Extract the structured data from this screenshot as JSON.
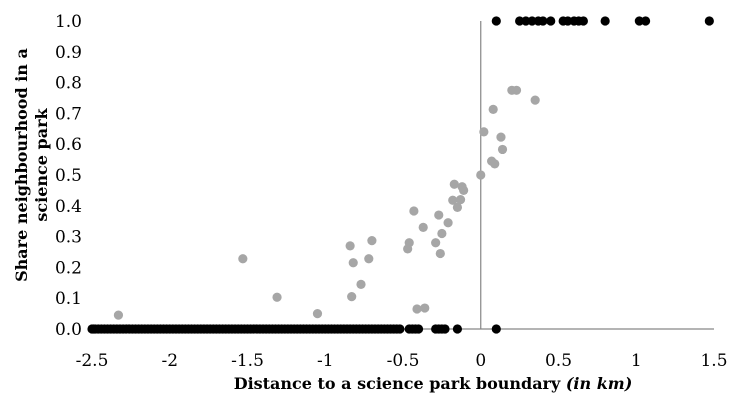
{
  "chart_data": {
    "type": "scatter",
    "title": "",
    "xlabel": "Distance to a science park boundary",
    "xlabel_unit": "(in km)",
    "ylabel_line1": "Share neighbourhood in a",
    "ylabel_line2": "science park",
    "xlim": [
      -2.5,
      1.5
    ],
    "ylim": [
      0.0,
      1.0
    ],
    "x_ticks": [
      "-2.5",
      "-2",
      "-1.5",
      "-1",
      "-0.5",
      "0",
      "0.5",
      "1",
      "1.5"
    ],
    "y_ticks": [
      "0.0",
      "0.1",
      "0.2",
      "0.3",
      "0.4",
      "0.5",
      "0.6",
      "0.7",
      "0.8",
      "0.9",
      "1.0"
    ],
    "grid": false,
    "legend": "none",
    "series": [
      {
        "color": "#a6a6a6",
        "points": [
          [
            -2.33,
            0.045
          ],
          [
            -1.53,
            0.228
          ],
          [
            -1.31,
            0.103
          ],
          [
            -1.05,
            0.05
          ],
          [
            -0.84,
            0.27
          ],
          [
            -0.83,
            0.105
          ],
          [
            -0.82,
            0.215
          ],
          [
            -0.77,
            0.145
          ],
          [
            -0.72,
            0.228
          ],
          [
            -0.7,
            0.287
          ],
          [
            -0.47,
            0.26
          ],
          [
            -0.46,
            0.28
          ],
          [
            -0.43,
            0.383
          ],
          [
            -0.41,
            0.065
          ],
          [
            -0.37,
            0.33
          ],
          [
            -0.36,
            0.068
          ],
          [
            -0.29,
            0.28
          ],
          [
            -0.27,
            0.37
          ],
          [
            -0.26,
            0.245
          ],
          [
            -0.25,
            0.31
          ],
          [
            -0.21,
            0.345
          ],
          [
            -0.18,
            0.418
          ],
          [
            -0.17,
            0.47
          ],
          [
            -0.15,
            0.395
          ],
          [
            -0.13,
            0.42
          ],
          [
            -0.12,
            0.462
          ],
          [
            -0.11,
            0.45
          ],
          [
            0.0,
            0.5
          ],
          [
            0.02,
            0.64
          ],
          [
            0.07,
            0.545
          ],
          [
            0.08,
            0.713
          ],
          [
            0.09,
            0.536
          ],
          [
            0.13,
            0.623
          ],
          [
            0.14,
            0.583
          ],
          [
            0.2,
            0.775
          ],
          [
            0.23,
            0.775
          ],
          [
            0.35,
            0.743
          ]
        ]
      },
      {
        "color": "#000000",
        "points": [
          [
            -2.5,
            0.0
          ],
          [
            -2.49,
            0.0
          ],
          [
            -2.48,
            0.0
          ],
          [
            -2.46,
            0.0
          ],
          [
            -2.44,
            0.0
          ],
          [
            -2.42,
            0.0
          ],
          [
            -2.4,
            0.0
          ],
          [
            -2.38,
            0.0
          ],
          [
            -2.36,
            0.0
          ],
          [
            -2.34,
            0.0
          ],
          [
            -2.32,
            0.0
          ],
          [
            -2.3,
            0.0
          ],
          [
            -2.28,
            0.0
          ],
          [
            -2.26,
            0.0
          ],
          [
            -2.24,
            0.0
          ],
          [
            -2.22,
            0.0
          ],
          [
            -2.2,
            0.0
          ],
          [
            -2.18,
            0.0
          ],
          [
            -2.16,
            0.0
          ],
          [
            -2.14,
            0.0
          ],
          [
            -2.12,
            0.0
          ],
          [
            -2.1,
            0.0
          ],
          [
            -2.08,
            0.0
          ],
          [
            -2.06,
            0.0
          ],
          [
            -2.04,
            0.0
          ],
          [
            -2.02,
            0.0
          ],
          [
            -2.0,
            0.0
          ],
          [
            -1.98,
            0.0
          ],
          [
            -1.96,
            0.0
          ],
          [
            -1.94,
            0.0
          ],
          [
            -1.92,
            0.0
          ],
          [
            -1.9,
            0.0
          ],
          [
            -1.88,
            0.0
          ],
          [
            -1.86,
            0.0
          ],
          [
            -1.84,
            0.0
          ],
          [
            -1.82,
            0.0
          ],
          [
            -1.8,
            0.0
          ],
          [
            -1.78,
            0.0
          ],
          [
            -1.76,
            0.0
          ],
          [
            -1.74,
            0.0
          ],
          [
            -1.72,
            0.0
          ],
          [
            -1.7,
            0.0
          ],
          [
            -1.68,
            0.0
          ],
          [
            -1.66,
            0.0
          ],
          [
            -1.64,
            0.0
          ],
          [
            -1.62,
            0.0
          ],
          [
            -1.6,
            0.0
          ],
          [
            -1.58,
            0.0
          ],
          [
            -1.56,
            0.0
          ],
          [
            -1.54,
            0.0
          ],
          [
            -1.52,
            0.0
          ],
          [
            -1.5,
            0.0
          ],
          [
            -1.48,
            0.0
          ],
          [
            -1.46,
            0.0
          ],
          [
            -1.44,
            0.0
          ],
          [
            -1.42,
            0.0
          ],
          [
            -1.4,
            0.0
          ],
          [
            -1.38,
            0.0
          ],
          [
            -1.36,
            0.0
          ],
          [
            -1.34,
            0.0
          ],
          [
            -1.32,
            0.0
          ],
          [
            -1.3,
            0.0
          ],
          [
            -1.28,
            0.0
          ],
          [
            -1.26,
            0.0
          ],
          [
            -1.24,
            0.0
          ],
          [
            -1.22,
            0.0
          ],
          [
            -1.2,
            0.0
          ],
          [
            -1.18,
            0.0
          ],
          [
            -1.16,
            0.0
          ],
          [
            -1.14,
            0.0
          ],
          [
            -1.12,
            0.0
          ],
          [
            -1.1,
            0.0
          ],
          [
            -1.08,
            0.0
          ],
          [
            -1.06,
            0.0
          ],
          [
            -1.04,
            0.0
          ],
          [
            -1.02,
            0.0
          ],
          [
            -1.0,
            0.0
          ],
          [
            -0.98,
            0.0
          ],
          [
            -0.96,
            0.0
          ],
          [
            -0.94,
            0.0
          ],
          [
            -0.92,
            0.0
          ],
          [
            -0.9,
            0.0
          ],
          [
            -0.88,
            0.0
          ],
          [
            -0.86,
            0.0
          ],
          [
            -0.84,
            0.0
          ],
          [
            -0.82,
            0.0
          ],
          [
            -0.8,
            0.0
          ],
          [
            -0.78,
            0.0
          ],
          [
            -0.76,
            0.0
          ],
          [
            -0.74,
            0.0
          ],
          [
            -0.72,
            0.0
          ],
          [
            -0.7,
            0.0
          ],
          [
            -0.68,
            0.0
          ],
          [
            -0.66,
            0.0
          ],
          [
            -0.64,
            0.0
          ],
          [
            -0.62,
            0.0
          ],
          [
            -0.6,
            0.0
          ],
          [
            -0.58,
            0.0
          ],
          [
            -0.56,
            0.0
          ],
          [
            -0.54,
            0.0
          ],
          [
            -0.52,
            0.0
          ],
          [
            -0.46,
            0.0
          ],
          [
            -0.44,
            0.0
          ],
          [
            -0.42,
            0.0
          ],
          [
            -0.4,
            0.0
          ],
          [
            -0.29,
            0.0
          ],
          [
            -0.27,
            0.0
          ],
          [
            -0.25,
            0.0
          ],
          [
            -0.23,
            0.0
          ],
          [
            -0.15,
            0.0
          ],
          [
            0.1,
            0.0
          ],
          [
            0.1,
            1.0
          ],
          [
            0.25,
            1.0
          ],
          [
            0.29,
            1.0
          ],
          [
            0.33,
            1.0
          ],
          [
            0.37,
            1.0
          ],
          [
            0.4,
            1.0
          ],
          [
            0.45,
            1.0
          ],
          [
            0.53,
            1.0
          ],
          [
            0.56,
            1.0
          ],
          [
            0.6,
            1.0
          ],
          [
            0.63,
            1.0
          ],
          [
            0.66,
            1.0
          ],
          [
            0.8,
            1.0
          ],
          [
            1.02,
            1.0
          ],
          [
            1.06,
            1.0
          ],
          [
            1.47,
            1.0
          ]
        ]
      }
    ]
  }
}
